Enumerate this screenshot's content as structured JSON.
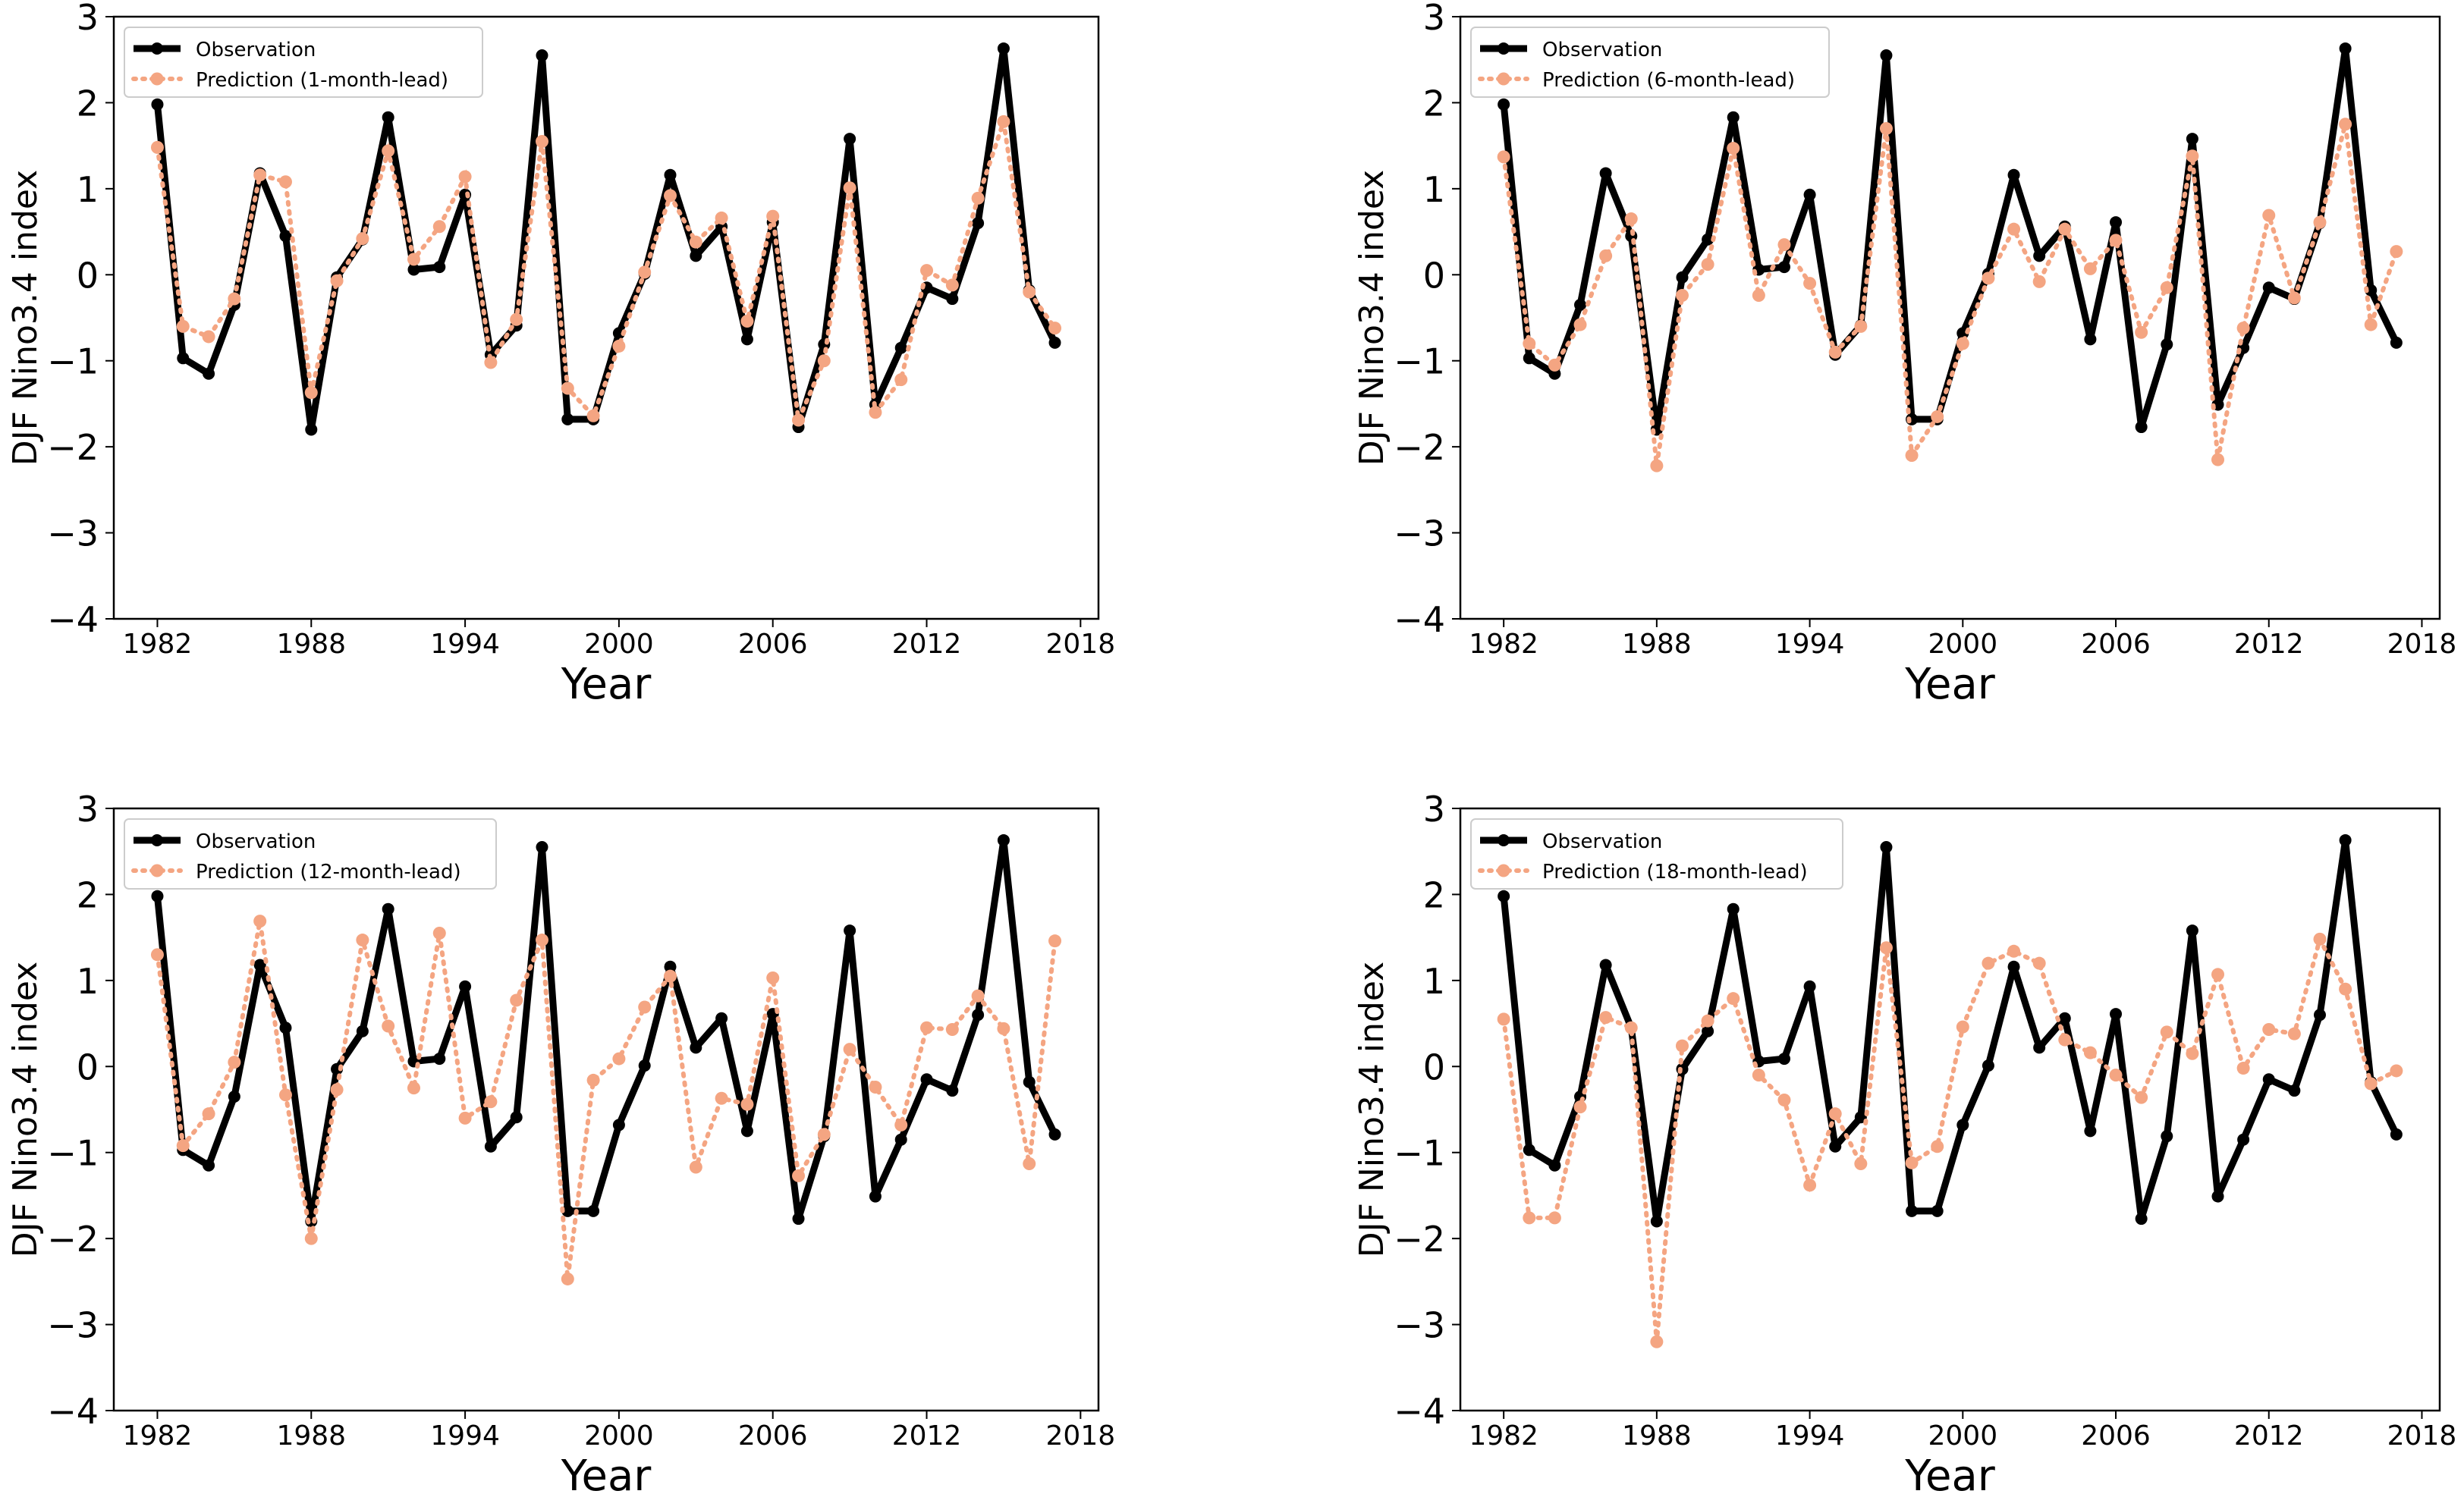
{
  "colors": {
    "observation": "#000000",
    "prediction": "#f4a582",
    "axes": "#000000",
    "background": "#ffffff"
  },
  "chart_data": [
    {
      "type": "line",
      "title": "",
      "xlabel": "Year",
      "ylabel": "DJF Nino3.4 index",
      "xlim": [
        1980.3,
        2018.7
      ],
      "ylim": [
        -4,
        3
      ],
      "xticks": [
        1982,
        1988,
        1994,
        2000,
        2006,
        2012,
        2018
      ],
      "yticks": [
        -4,
        -3,
        -2,
        -1,
        0,
        1,
        2,
        3
      ],
      "legend_position": "top-left",
      "x": [
        1982,
        1983,
        1984,
        1985,
        1986,
        1987,
        1988,
        1989,
        1990,
        1991,
        1992,
        1993,
        1994,
        1995,
        1996,
        1997,
        1998,
        1999,
        2000,
        2001,
        2002,
        2003,
        2004,
        2005,
        2006,
        2007,
        2008,
        2009,
        2010,
        2011,
        2012,
        2013,
        2014,
        2015,
        2016,
        2017
      ],
      "series": [
        {
          "name": "Observation",
          "style": "solid",
          "values": [
            1.98,
            -0.97,
            -1.15,
            -0.35,
            1.18,
            0.45,
            -1.8,
            -0.03,
            0.41,
            1.83,
            0.06,
            0.09,
            0.93,
            -0.93,
            -0.59,
            2.55,
            -1.68,
            -1.68,
            -0.68,
            0.01,
            1.16,
            0.22,
            0.56,
            -0.75,
            0.61,
            -1.77,
            -0.81,
            1.58,
            -1.51,
            -0.85,
            -0.15,
            -0.28,
            0.6,
            2.63,
            -0.18,
            -0.79
          ]
        },
        {
          "name": "Prediction (1-month-lead)",
          "style": "dotted",
          "values": [
            1.48,
            -0.6,
            -0.72,
            -0.28,
            1.16,
            1.08,
            -1.37,
            -0.07,
            0.42,
            1.44,
            0.18,
            0.56,
            1.14,
            -1.02,
            -0.52,
            1.55,
            -1.32,
            -1.64,
            -0.83,
            0.03,
            0.92,
            0.38,
            0.66,
            -0.54,
            0.68,
            -1.69,
            -1.0,
            1.01,
            -1.6,
            -1.22,
            0.05,
            -0.12,
            0.89,
            1.78,
            -0.2,
            -0.62
          ]
        }
      ]
    },
    {
      "type": "line",
      "title": "",
      "xlabel": "Year",
      "ylabel": "DJF Nino3.4 index",
      "xlim": [
        1980.3,
        2018.7
      ],
      "ylim": [
        -4,
        3
      ],
      "xticks": [
        1982,
        1988,
        1994,
        2000,
        2006,
        2012,
        2018
      ],
      "yticks": [
        -4,
        -3,
        -2,
        -1,
        0,
        1,
        2,
        3
      ],
      "legend_position": "top-left",
      "x": [
        1982,
        1983,
        1984,
        1985,
        1986,
        1987,
        1988,
        1989,
        1990,
        1991,
        1992,
        1993,
        1994,
        1995,
        1996,
        1997,
        1998,
        1999,
        2000,
        2001,
        2002,
        2003,
        2004,
        2005,
        2006,
        2007,
        2008,
        2009,
        2010,
        2011,
        2012,
        2013,
        2014,
        2015,
        2016,
        2017
      ],
      "series": [
        {
          "name": "Observation",
          "style": "solid",
          "values": [
            1.98,
            -0.97,
            -1.15,
            -0.35,
            1.18,
            0.45,
            -1.8,
            -0.03,
            0.41,
            1.83,
            0.06,
            0.09,
            0.93,
            -0.93,
            -0.59,
            2.55,
            -1.68,
            -1.68,
            -0.68,
            0.01,
            1.16,
            0.22,
            0.56,
            -0.75,
            0.61,
            -1.77,
            -0.81,
            1.58,
            -1.51,
            -0.85,
            -0.15,
            -0.28,
            0.6,
            2.63,
            -0.18,
            -0.79
          ]
        },
        {
          "name": "Prediction (6-month-lead)",
          "style": "dotted",
          "values": [
            1.37,
            -0.8,
            -1.05,
            -0.58,
            0.22,
            0.65,
            -2.22,
            -0.24,
            0.12,
            1.47,
            -0.24,
            0.35,
            -0.1,
            -0.9,
            -0.6,
            1.7,
            -2.1,
            -1.65,
            -0.8,
            -0.04,
            0.53,
            -0.08,
            0.53,
            0.07,
            0.4,
            -0.67,
            -0.15,
            1.38,
            -2.15,
            -0.62,
            0.69,
            -0.27,
            0.61,
            1.75,
            -0.58,
            0.27
          ]
        }
      ]
    },
    {
      "type": "line",
      "title": "",
      "xlabel": "Year",
      "ylabel": "DJF Nino3.4 index",
      "xlim": [
        1980.3,
        2018.7
      ],
      "ylim": [
        -4,
        3
      ],
      "xticks": [
        1982,
        1988,
        1994,
        2000,
        2006,
        2012,
        2018
      ],
      "yticks": [
        -4,
        -3,
        -2,
        -1,
        0,
        1,
        2,
        3
      ],
      "legend_position": "top-left",
      "x": [
        1982,
        1983,
        1984,
        1985,
        1986,
        1987,
        1988,
        1989,
        1990,
        1991,
        1992,
        1993,
        1994,
        1995,
        1996,
        1997,
        1998,
        1999,
        2000,
        2001,
        2002,
        2003,
        2004,
        2005,
        2006,
        2007,
        2008,
        2009,
        2010,
        2011,
        2012,
        2013,
        2014,
        2015,
        2016,
        2017
      ],
      "series": [
        {
          "name": "Observation",
          "style": "solid",
          "values": [
            1.98,
            -0.97,
            -1.15,
            -0.35,
            1.18,
            0.45,
            -1.8,
            -0.03,
            0.41,
            1.83,
            0.06,
            0.09,
            0.93,
            -0.93,
            -0.59,
            2.55,
            -1.68,
            -1.68,
            -0.68,
            0.01,
            1.16,
            0.22,
            0.56,
            -0.75,
            0.61,
            -1.77,
            -0.81,
            1.58,
            -1.51,
            -0.85,
            -0.15,
            -0.28,
            0.6,
            2.63,
            -0.18,
            -0.79
          ]
        },
        {
          "name": "Prediction (12-month-lead)",
          "style": "dotted",
          "values": [
            1.3,
            -0.92,
            -0.55,
            0.05,
            1.69,
            -0.33,
            -2.0,
            -0.27,
            1.47,
            0.47,
            -0.25,
            1.55,
            -0.6,
            -0.41,
            0.77,
            1.47,
            -2.47,
            -0.16,
            0.09,
            0.69,
            1.05,
            -1.17,
            -0.37,
            -0.44,
            1.03,
            -1.27,
            -0.79,
            0.2,
            -0.24,
            -0.68,
            0.45,
            0.43,
            0.82,
            0.44,
            -1.13,
            1.46
          ]
        }
      ]
    },
    {
      "type": "line",
      "title": "",
      "xlabel": "Year",
      "ylabel": "DJF Nino3.4 index",
      "xlim": [
        1980.3,
        2018.7
      ],
      "ylim": [
        -4,
        3
      ],
      "xticks": [
        1982,
        1988,
        1994,
        2000,
        2006,
        2012,
        2018
      ],
      "yticks": [
        -4,
        -3,
        -2,
        -1,
        0,
        1,
        2,
        3
      ],
      "legend_position": "top-left",
      "x": [
        1982,
        1983,
        1984,
        1985,
        1986,
        1987,
        1988,
        1989,
        1990,
        1991,
        1992,
        1993,
        1994,
        1995,
        1996,
        1997,
        1998,
        1999,
        2000,
        2001,
        2002,
        2003,
        2004,
        2005,
        2006,
        2007,
        2008,
        2009,
        2010,
        2011,
        2012,
        2013,
        2014,
        2015,
        2016,
        2017
      ],
      "series": [
        {
          "name": "Observation",
          "style": "solid",
          "values": [
            1.98,
            -0.97,
            -1.15,
            -0.35,
            1.18,
            0.45,
            -1.8,
            -0.03,
            0.41,
            1.83,
            0.06,
            0.09,
            0.93,
            -0.93,
            -0.59,
            2.55,
            -1.68,
            -1.68,
            -0.68,
            0.01,
            1.16,
            0.22,
            0.56,
            -0.75,
            0.61,
            -1.77,
            -0.81,
            1.58,
            -1.51,
            -0.85,
            -0.15,
            -0.28,
            0.6,
            2.63,
            -0.18,
            -0.79
          ]
        },
        {
          "name": "Prediction (18-month-lead)",
          "style": "dotted",
          "values": [
            0.55,
            -1.76,
            -1.76,
            -0.47,
            0.57,
            0.45,
            -3.2,
            0.24,
            0.53,
            0.79,
            -0.1,
            -0.39,
            -1.38,
            -0.55,
            -1.13,
            1.38,
            -1.12,
            -0.93,
            0.46,
            1.2,
            1.34,
            1.2,
            0.31,
            0.16,
            -0.1,
            -0.36,
            0.4,
            0.15,
            1.07,
            -0.02,
            0.43,
            0.38,
            1.48,
            0.9,
            -0.2,
            -0.05
          ]
        }
      ]
    }
  ]
}
